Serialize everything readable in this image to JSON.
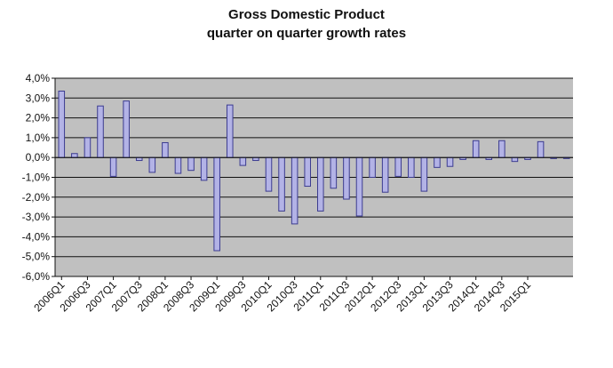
{
  "chart_data": {
    "type": "bar",
    "title": "Gross Domestic Product",
    "subtitle": "quarter on quarter growth rates",
    "xlabel": "",
    "ylabel": "",
    "ylim": [
      -6.0,
      4.0
    ],
    "y_ticks": [
      "4,0%",
      "3,0%",
      "2,0%",
      "1,0%",
      "0,0%",
      "-1,0%",
      "-2,0%",
      "-3,0%",
      "-4,0%",
      "-5,0%",
      "-6,0%"
    ],
    "y_tick_values": [
      4,
      3,
      2,
      1,
      0,
      -1,
      -2,
      -3,
      -4,
      -5,
      -6
    ],
    "x_tick_labels": [
      "2006Q1",
      "2006Q3",
      "2007Q1",
      "2007Q3",
      "2008Q1",
      "2008Q3",
      "2009Q1",
      "2009Q3",
      "2010Q1",
      "2010Q3",
      "2011Q1",
      "2011Q3",
      "2012Q1",
      "2012Q3",
      "2013Q1",
      "2013Q3",
      "2014Q1",
      "2014Q3",
      "2015Q1"
    ],
    "categories": [
      "2006Q1",
      "2006Q2",
      "2006Q3",
      "2006Q4",
      "2007Q1",
      "2007Q2",
      "2007Q3",
      "2007Q4",
      "2008Q1",
      "2008Q2",
      "2008Q3",
      "2008Q4",
      "2009Q1",
      "2009Q2",
      "2009Q3",
      "2009Q4",
      "2010Q1",
      "2010Q2",
      "2010Q3",
      "2010Q4",
      "2011Q1",
      "2011Q2",
      "2011Q3",
      "2011Q4",
      "2012Q1",
      "2012Q2",
      "2012Q3",
      "2012Q4",
      "2013Q1",
      "2013Q2",
      "2013Q3",
      "2013Q4",
      "2014Q1",
      "2014Q2",
      "2014Q3",
      "2014Q4",
      "2015Q1",
      "2015Q2",
      "2015Q3",
      "2015Q4"
    ],
    "values": [
      3.35,
      0.2,
      1.0,
      2.6,
      -0.95,
      2.85,
      -0.15,
      -0.75,
      0.75,
      -0.8,
      -0.65,
      -1.15,
      -4.7,
      2.65,
      -0.4,
      -0.15,
      -1.7,
      -2.7,
      -3.35,
      -1.45,
      -2.7,
      -1.55,
      -2.1,
      -2.95,
      -1.0,
      -1.75,
      -0.95,
      -1.0,
      -1.7,
      -0.5,
      -0.45,
      -0.1,
      0.85,
      -0.1,
      0.85,
      -0.2,
      -0.1,
      0.8,
      -0.05,
      -0.05
    ],
    "grid": true,
    "legend": "none",
    "colors": {
      "bar_fill": "#b3b3e6",
      "bar_stroke": "#3c3c90",
      "plot_background": "#c0c0c0",
      "gridline": "#111111",
      "axis": "#111111"
    }
  }
}
